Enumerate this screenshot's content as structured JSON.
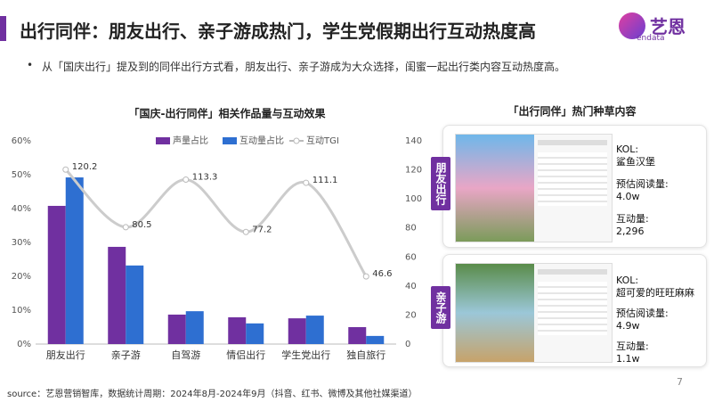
{
  "title": "出行同伴：朋友出行、亲子游成热门，学生党假期出行互动热度高",
  "logo": {
    "name": "艺恩",
    "sub": "endata"
  },
  "bullet": "从「国庆出行」提及到的同伴出行方式看，朋友出行、亲子游成为大众选择，闺蜜一起出行类内容互动热度高。",
  "chart_data": {
    "type": "bar",
    "title": "「国庆-出行同伴」相关作品量与互动效果",
    "categories": [
      "朋友出行",
      "亲子游",
      "自驾游",
      "情侣出行",
      "学生党出行",
      "独自旅行"
    ],
    "series": [
      {
        "name": "声量占比",
        "color": "#7030a0",
        "values": [
          40.8,
          28.7,
          8.7,
          7.9,
          7.6,
          5.0
        ]
      },
      {
        "name": "互动量占比",
        "color": "#2e6fd1",
        "values": [
          49.2,
          23.2,
          9.7,
          6.1,
          8.4,
          2.4
        ]
      },
      {
        "name": "互动TGI",
        "color": "#cccccc",
        "type": "line",
        "axis": "y2",
        "values": [
          120.2,
          80.5,
          113.3,
          77.2,
          111.1,
          46.6
        ]
      }
    ],
    "ylim": [
      0,
      60
    ],
    "yticks": [
      {
        "value": 0,
        "label": "0%"
      },
      {
        "value": 10,
        "label": "10%"
      },
      {
        "value": 20,
        "label": "20%"
      },
      {
        "value": 30,
        "label": "30%"
      },
      {
        "value": 40,
        "label": "40%"
      },
      {
        "value": 50,
        "label": "50%"
      },
      {
        "value": 60,
        "label": "60%"
      }
    ],
    "y2lim": [
      0,
      140
    ],
    "y2ticks": [
      0,
      20,
      40,
      60,
      80,
      100,
      120,
      140
    ],
    "legend": "top"
  },
  "panel": {
    "title": "「出行同伴」热门种草内容",
    "cards": [
      {
        "tag": "朋友出行",
        "kol_label": "KOL:",
        "kol": "鲨鱼汉堡",
        "read_label": "预估阅读量:",
        "read": "4.0w",
        "interact_label": "互动量:",
        "interact": "2,296"
      },
      {
        "tag": "亲子游",
        "kol_label": "KOL:",
        "kol": "超可爱的旺旺麻麻",
        "read_label": "预估阅读量:",
        "read": "4.9w",
        "interact_label": "互动量:",
        "interact": "1.1w"
      }
    ]
  },
  "source": "source：艺恩营销智库，数据统计周期：2024年8月-2024年9月（抖音、红书、微博及其他社媒渠道）",
  "page": "7"
}
